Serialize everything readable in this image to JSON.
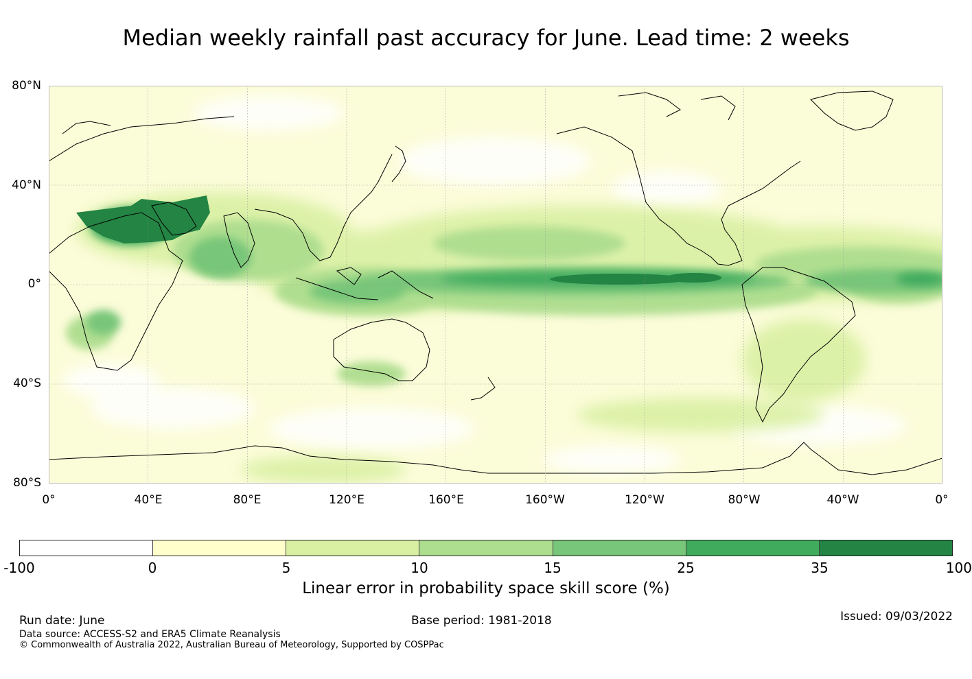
{
  "title": "Median weekly rainfall past accuracy for June. Lead time: 2 weeks",
  "map": {
    "y_labels": [
      "80°N",
      "40°N",
      "0°",
      "40°S",
      "80°S"
    ],
    "x_labels": [
      "0°",
      "40°E",
      "80°E",
      "120°E",
      "160°E",
      "160°W",
      "120°W",
      "80°W",
      "40°W",
      "0°"
    ],
    "ocean_color": "#fbfcd8",
    "land_outline_color": "#000000"
  },
  "colorbar": {
    "ticks": [
      "-100",
      "0",
      "5",
      "10",
      "15",
      "25",
      "35",
      "100"
    ],
    "colors": [
      "#ffffff",
      "#ffffcc",
      "#d9f0a3",
      "#addd8e",
      "#78c679",
      "#41ab5d",
      "#238443"
    ],
    "label": "Linear error in probability space skill score (%)"
  },
  "footer": {
    "run_date": "Run date: June",
    "base_period": "Base period: 1981-2018",
    "issued": "Issued: 09/03/2022",
    "data_source": "Data source: ACCESS-S2 and ERA5 Climate Reanalysis",
    "copyright": "© Commonwealth of Australia 2022, Australian Bureau of Meteorology, Supported by COSPPac"
  }
}
